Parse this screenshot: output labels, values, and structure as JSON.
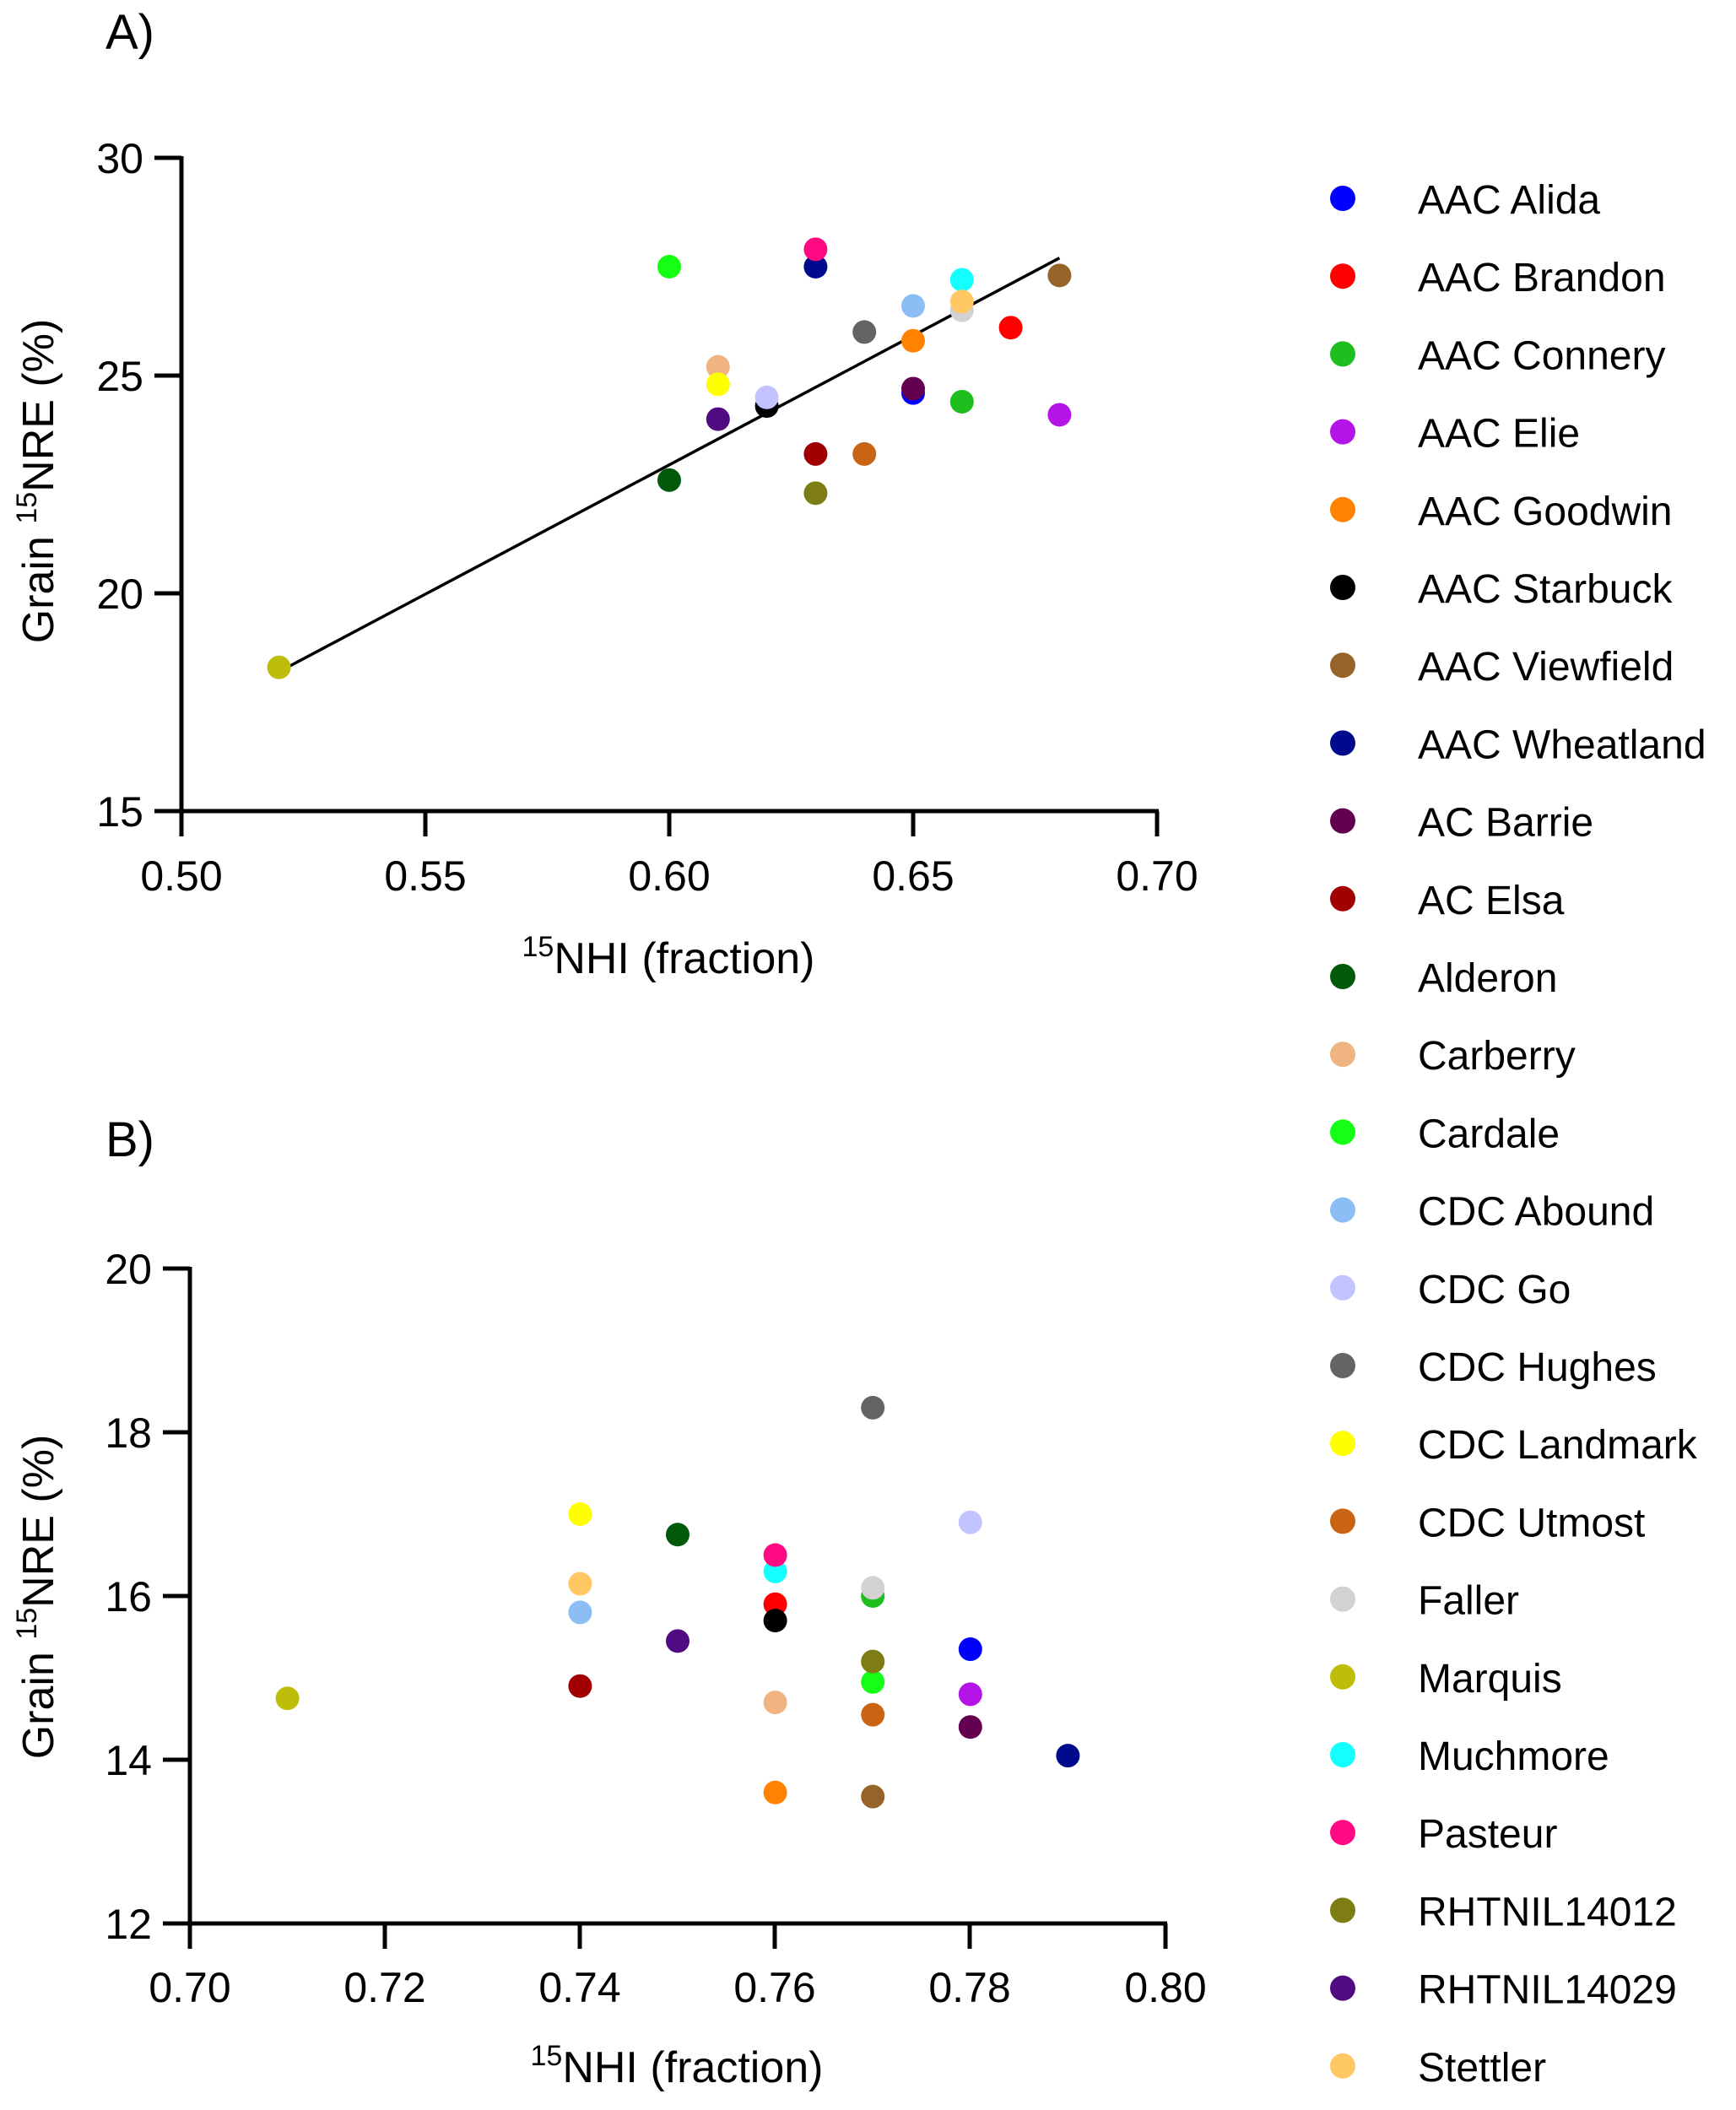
{
  "chart_data": [
    {
      "type": "scatter",
      "panel_label": "A)",
      "xlabel": {
        "sup": "15",
        "text": "NHI (fraction)"
      },
      "ylabel": {
        "prefix": "Grain ",
        "sup": "15",
        "text": "NRE (%)"
      },
      "xlim": [
        0.5,
        0.7
      ],
      "ylim": [
        15,
        30
      ],
      "xticks": [
        "0.50",
        "0.55",
        "0.60",
        "0.65",
        "0.70"
      ],
      "yticks": [
        "15",
        "20",
        "25",
        "30"
      ],
      "trendline": {
        "x": [
          0.52,
          0.68
        ],
        "y": [
          18.2,
          27.7
        ]
      },
      "points": [
        {
          "label": "AAC Alida",
          "x": 0.65,
          "y": 24.6
        },
        {
          "label": "AAC Brandon",
          "x": 0.67,
          "y": 26.1
        },
        {
          "label": "AAC Connery",
          "x": 0.66,
          "y": 24.4
        },
        {
          "label": "AAC Elie",
          "x": 0.68,
          "y": 24.1
        },
        {
          "label": "AAC Goodwin",
          "x": 0.65,
          "y": 25.8
        },
        {
          "label": "AAC Starbuck",
          "x": 0.62,
          "y": 24.3
        },
        {
          "label": "AAC Viewfield",
          "x": 0.68,
          "y": 27.3
        },
        {
          "label": "AAC Wheatland",
          "x": 0.63,
          "y": 27.5
        },
        {
          "label": "AC Barrie",
          "x": 0.65,
          "y": 24.7
        },
        {
          "label": "AC Elsa",
          "x": 0.63,
          "y": 23.2
        },
        {
          "label": "Alderon",
          "x": 0.6,
          "y": 22.6
        },
        {
          "label": "Carberry",
          "x": 0.61,
          "y": 25.2
        },
        {
          "label": "Cardale",
          "x": 0.6,
          "y": 27.5
        },
        {
          "label": "CDC Abound",
          "x": 0.65,
          "y": 26.6
        },
        {
          "label": "CDC Go",
          "x": 0.62,
          "y": 24.5
        },
        {
          "label": "CDC Hughes",
          "x": 0.64,
          "y": 26.0
        },
        {
          "label": "CDC Landmark",
          "x": 0.61,
          "y": 24.8
        },
        {
          "label": "CDC Utmost",
          "x": 0.64,
          "y": 23.2
        },
        {
          "label": "Faller",
          "x": 0.66,
          "y": 26.5
        },
        {
          "label": "Marquis",
          "x": 0.52,
          "y": 18.3
        },
        {
          "label": "Muchmore",
          "x": 0.66,
          "y": 27.2
        },
        {
          "label": "Pasteur",
          "x": 0.63,
          "y": 27.9
        },
        {
          "label": "RHTNIL14012",
          "x": 0.63,
          "y": 22.3
        },
        {
          "label": "RHTNIL14029",
          "x": 0.61,
          "y": 24.0
        },
        {
          "label": "Stettler",
          "x": 0.66,
          "y": 26.7
        }
      ]
    },
    {
      "type": "scatter",
      "panel_label": "B)",
      "xlabel": {
        "sup": "15",
        "text": "NHI (fraction)"
      },
      "ylabel": {
        "prefix": "Grain ",
        "sup": "15",
        "text": "NRE (%)"
      },
      "xlim": [
        0.7,
        0.8
      ],
      "ylim": [
        12,
        20
      ],
      "xticks": [
        "0.70",
        "0.72",
        "0.74",
        "0.76",
        "0.78",
        "0.80"
      ],
      "yticks": [
        "12",
        "14",
        "16",
        "18",
        "20"
      ],
      "points": [
        {
          "label": "AAC Alida",
          "x": 0.78,
          "y": 15.35
        },
        {
          "label": "AAC Brandon",
          "x": 0.76,
          "y": 15.9
        },
        {
          "label": "AAC Connery",
          "x": 0.77,
          "y": 16.0
        },
        {
          "label": "AAC Elie",
          "x": 0.78,
          "y": 14.8
        },
        {
          "label": "AAC Goodwin",
          "x": 0.76,
          "y": 13.6
        },
        {
          "label": "AAC Starbuck",
          "x": 0.76,
          "y": 15.7
        },
        {
          "label": "AAC Viewfield",
          "x": 0.77,
          "y": 13.55
        },
        {
          "label": "AAC Wheatland",
          "x": 0.79,
          "y": 14.05
        },
        {
          "label": "AC Barrie",
          "x": 0.78,
          "y": 14.4
        },
        {
          "label": "AC Elsa",
          "x": 0.74,
          "y": 14.9
        },
        {
          "label": "Alderon",
          "x": 0.75,
          "y": 16.75
        },
        {
          "label": "Carberry",
          "x": 0.76,
          "y": 14.7
        },
        {
          "label": "Cardale",
          "x": 0.77,
          "y": 14.95
        },
        {
          "label": "CDC Abound",
          "x": 0.74,
          "y": 15.8
        },
        {
          "label": "CDC Go",
          "x": 0.78,
          "y": 16.9
        },
        {
          "label": "CDC Hughes",
          "x": 0.77,
          "y": 18.3
        },
        {
          "label": "CDC Landmark",
          "x": 0.74,
          "y": 17.0
        },
        {
          "label": "CDC Utmost",
          "x": 0.77,
          "y": 14.55
        },
        {
          "label": "Faller",
          "x": 0.77,
          "y": 16.1
        },
        {
          "label": "Marquis",
          "x": 0.71,
          "y": 14.75
        },
        {
          "label": "Muchmore",
          "x": 0.76,
          "y": 16.3
        },
        {
          "label": "Pasteur",
          "x": 0.76,
          "y": 16.5
        },
        {
          "label": "RHTNIL14012",
          "x": 0.77,
          "y": 15.2
        },
        {
          "label": "RHTNIL14029",
          "x": 0.75,
          "y": 15.45
        },
        {
          "label": "Stettler",
          "x": 0.74,
          "y": 16.15
        }
      ]
    }
  ],
  "legend": [
    {
      "label": "AAC Alida",
      "color": "#0000FF"
    },
    {
      "label": "AAC Brandon",
      "color": "#FF0000"
    },
    {
      "label": "AAC Connery",
      "color": "#1EBE1E"
    },
    {
      "label": "AAC Elie",
      "color": "#B414E6"
    },
    {
      "label": "AAC Goodwin",
      "color": "#FF8200"
    },
    {
      "label": "AAC Starbuck",
      "color": "#000000"
    },
    {
      "label": "AAC Viewfield",
      "color": "#966428"
    },
    {
      "label": "AAC Wheatland",
      "color": "#000A8C"
    },
    {
      "label": "AC Barrie",
      "color": "#640050"
    },
    {
      "label": "AC Elsa",
      "color": "#A00000"
    },
    {
      "label": "Alderon",
      "color": "#005A0A"
    },
    {
      "label": "Carberry",
      "color": "#F0B482"
    },
    {
      "label": "Cardale",
      "color": "#14FF14"
    },
    {
      "label": "CDC Abound",
      "color": "#8CBEF5"
    },
    {
      "label": "CDC Go",
      "color": "#C3C3FF"
    },
    {
      "label": "CDC Hughes",
      "color": "#646464"
    },
    {
      "label": "CDC Landmark",
      "color": "#FFFF00"
    },
    {
      "label": "CDC Utmost",
      "color": "#C86414"
    },
    {
      "label": "Faller",
      "color": "#D2D2D2"
    },
    {
      "label": "Marquis",
      "color": "#BEBE0A"
    },
    {
      "label": "Muchmore",
      "color": "#14FFFF"
    },
    {
      "label": "Pasteur",
      "color": "#FF0A82"
    },
    {
      "label": "RHTNIL14012",
      "color": "#7D7D14"
    },
    {
      "label": "RHTNIL14029",
      "color": "#500A82"
    },
    {
      "label": "Stettler",
      "color": "#FFC864"
    }
  ]
}
